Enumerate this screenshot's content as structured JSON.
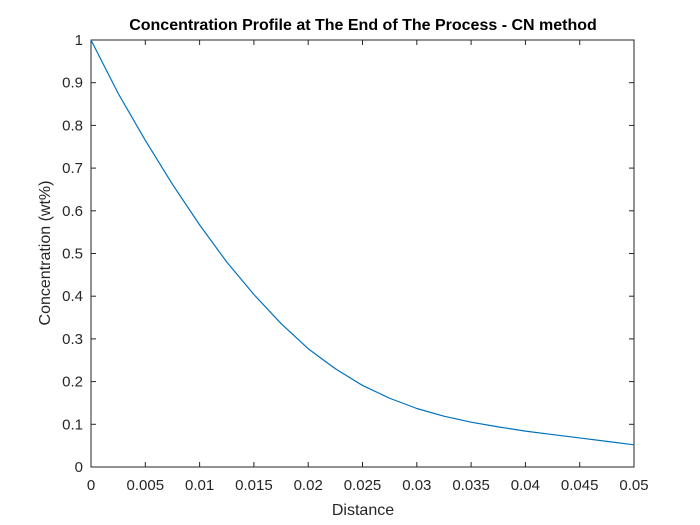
{
  "chart_data": {
    "type": "line",
    "title": "Concentration Profile at The End of The Process - CN method",
    "xlabel": "Distance",
    "ylabel": "Concentration (wt%)",
    "xlim": [
      0,
      0.05
    ],
    "ylim": [
      0,
      1
    ],
    "grid": false,
    "legend": "none",
    "xticks": [
      0,
      0.005,
      0.01,
      0.015,
      0.02,
      0.025,
      0.03,
      0.035,
      0.04,
      0.045,
      0.05
    ],
    "xtick_labels": [
      "0",
      "0.005",
      "0.01",
      "0.015",
      "0.02",
      "0.025",
      "0.03",
      "0.035",
      "0.04",
      "0.045",
      "0.05"
    ],
    "yticks": [
      0,
      0.1,
      0.2,
      0.3,
      0.4,
      0.5,
      0.6,
      0.7,
      0.8,
      0.9,
      1
    ],
    "ytick_labels": [
      "0",
      "0.1",
      "0.2",
      "0.3",
      "0.4",
      "0.5",
      "0.6",
      "0.7",
      "0.8",
      "0.9",
      "1"
    ],
    "series": [
      {
        "color": "#0072BD",
        "x": [
          0,
          0.0025,
          0.005,
          0.0075,
          0.01,
          0.0125,
          0.015,
          0.0175,
          0.02,
          0.0225,
          0.025,
          0.0275,
          0.03,
          0.0325,
          0.035,
          0.0375,
          0.04,
          0.0425,
          0.045,
          0.0475,
          0.05
        ],
        "y": [
          1.0,
          0.875,
          0.765,
          0.662,
          0.567,
          0.48,
          0.404,
          0.336,
          0.277,
          0.23,
          0.191,
          0.161,
          0.137,
          0.119,
          0.105,
          0.094,
          0.084,
          0.076,
          0.068,
          0.06,
          0.052
        ]
      }
    ]
  }
}
